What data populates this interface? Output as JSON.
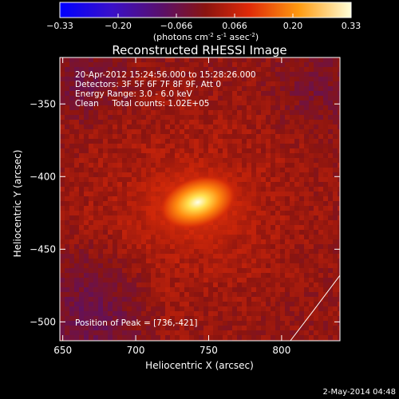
{
  "chart_data": {
    "type": "heatmap",
    "title": "Reconstructed RHESSI Image",
    "xlabel": "Heliocentric X (arcsec)",
    "ylabel": "Heliocentric Y (arcsec)",
    "xlim": [
      648,
      840
    ],
    "ylim": [
      -513,
      -318
    ],
    "x_ticks": [
      650,
      700,
      750,
      800
    ],
    "y_ticks": [
      -350,
      -400,
      -450,
      -500
    ],
    "colorbar": {
      "range": [
        -0.33,
        0.33
      ],
      "ticks": [
        "-0.33",
        "-0.20",
        "-0.066",
        "0.066",
        "0.20",
        "0.33"
      ],
      "label_prefix": "(photons cm",
      "label_exp1": "-2",
      "label_mid": " s",
      "label_exp2": "-1",
      "label_mid2": " asec",
      "label_exp3": "-2",
      "label_suffix": ")"
    },
    "annotations": [
      "20-Apr-2012 15:24:56.000 to 15:28:26.000",
      "Detectors: 3F 5F 6F 7F 8F 9F, Att 0",
      "Energy Range: 3.0 - 6.0 keV",
      "Clean     Total counts: 1.02E+05"
    ],
    "peak": {
      "x": 736,
      "y": -421,
      "label": "Position of Peak = [736,-421]"
    },
    "peak_value": 0.33,
    "background_value": 0.07,
    "limb_curve": [
      [
        840,
        -468
      ],
      [
        822,
        -492
      ],
      [
        806,
        -513
      ]
    ]
  },
  "footer": {
    "date": "2-May-2014 04:48"
  }
}
